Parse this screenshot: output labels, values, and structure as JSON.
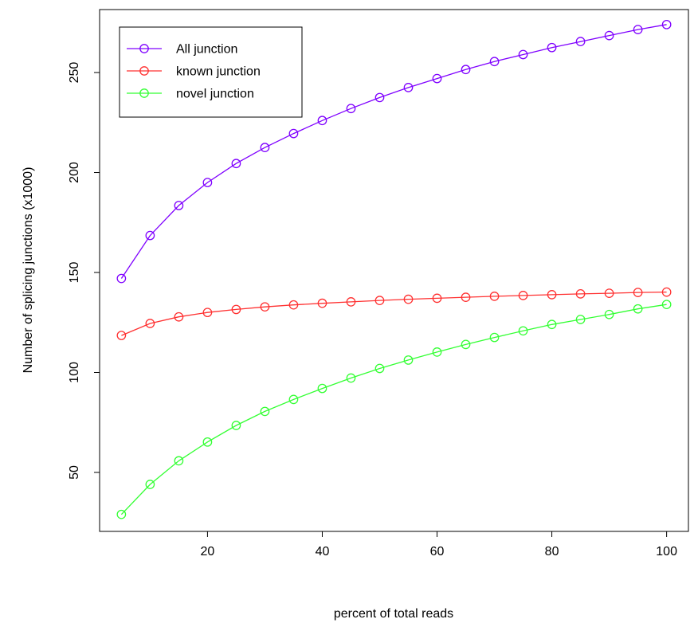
{
  "chart_data": {
    "type": "line",
    "title": "",
    "xlabel": "percent of total reads",
    "ylabel": "Number of splicing junctions (x1000)",
    "xlim": [
      1.2,
      103.8
    ],
    "ylim": [
      20.5,
      281.5
    ],
    "xticks": [
      20,
      40,
      60,
      80,
      100
    ],
    "yticks": [
      50,
      100,
      150,
      200,
      250
    ],
    "grid": false,
    "legend_position": "top-left",
    "x": [
      5,
      10,
      15,
      20,
      25,
      30,
      35,
      40,
      45,
      50,
      55,
      60,
      65,
      70,
      75,
      80,
      85,
      90,
      95,
      100
    ],
    "series": [
      {
        "name": "All junction",
        "color": "#7f00ff",
        "values": [
          147,
          168.5,
          183.5,
          195,
          204.5,
          212.5,
          219.5,
          226,
          232,
          237.5,
          242.5,
          247,
          251.5,
          255.5,
          259,
          262.5,
          265.5,
          268.5,
          271.5,
          274
        ]
      },
      {
        "name": "known junction",
        "color": "#ff3030",
        "values": [
          118.5,
          124.5,
          127.8,
          130,
          131.5,
          132.8,
          133.8,
          134.6,
          135.3,
          136,
          136.6,
          137.1,
          137.6,
          138.1,
          138.5,
          138.9,
          139.3,
          139.6,
          140,
          140.2
        ]
      },
      {
        "name": "novel junction",
        "color": "#33ff33",
        "values": [
          29,
          44,
          55.8,
          65.2,
          73.5,
          80.5,
          86.5,
          92,
          97.2,
          102,
          106.2,
          110.2,
          114,
          117.5,
          120.8,
          124,
          126.5,
          129,
          131.8,
          134
        ]
      }
    ]
  }
}
